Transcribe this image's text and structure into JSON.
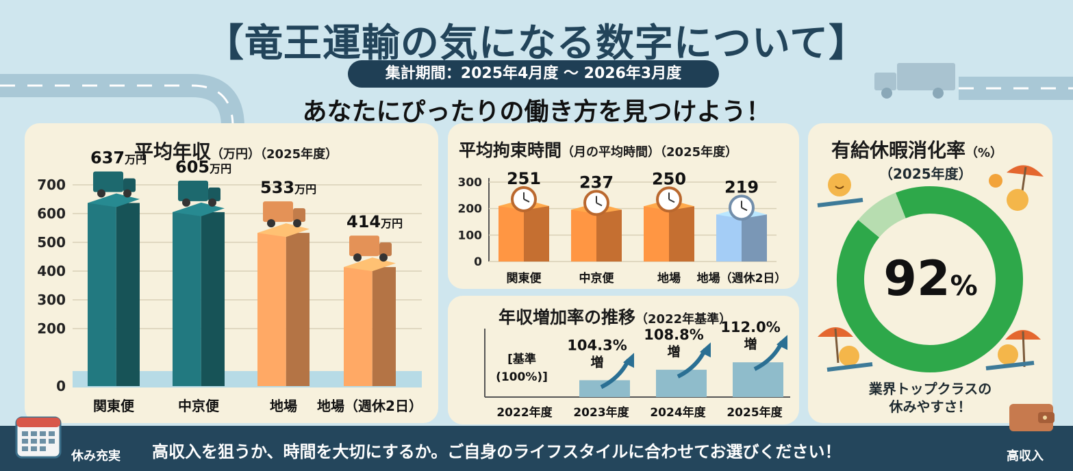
{
  "header": {
    "title": "【竜王運輸の気になる数字について】",
    "period": "集計期間：2025年4月度 〜 2026年3月度",
    "subtitle": "あなたにぴったりの働き方を見つけよう！"
  },
  "salary": {
    "title": "平均年収",
    "title_unit": "（万円）（2025年度）",
    "value_suffix": "万円",
    "chart_data": {
      "type": "bar",
      "categories": [
        "関東便",
        "中京便",
        "地場",
        "地場（週休2日）"
      ],
      "values": [
        637,
        605,
        533,
        414
      ],
      "ylim": [
        0,
        700
      ],
      "yticks": [
        0,
        200,
        300,
        400,
        500,
        600,
        700
      ],
      "colors": [
        "#1f6e74",
        "#1f6e74",
        "#f09a5c",
        "#f09a5c"
      ]
    }
  },
  "hours": {
    "title": "平均拘束時間",
    "title_unit": "（月の平均時間）（2025年度）",
    "chart_data": {
      "type": "bar",
      "categories": [
        "関東便",
        "中京便",
        "地場",
        "地場（週休2日）"
      ],
      "values": [
        251,
        237,
        250,
        219
      ],
      "ylim": [
        0,
        300
      ],
      "yticks": [
        0,
        100,
        200,
        300
      ],
      "colors": [
        "#e8823a",
        "#e8823a",
        "#e8823a",
        "#8fb2d6"
      ]
    }
  },
  "growth": {
    "title": "年収増加率の推移",
    "title_unit": "（2022年基準）",
    "chart_data": {
      "type": "bar",
      "categories": [
        "2022年度",
        "2023年度",
        "2024年度",
        "2025年度"
      ],
      "values": [
        100,
        104.3,
        108.8,
        112.0
      ],
      "labels": [
        "[基準 (100%)]",
        "104.3% 増",
        "108.8% 増",
        "112.0% 増"
      ]
    }
  },
  "leave": {
    "title": "有給休暇消化率",
    "title_unit": "（%）",
    "year": "（2025年度）",
    "chart_data": {
      "type": "pie",
      "values": [
        92,
        8
      ],
      "colors": [
        "#2ea84a",
        "#b7ddb0"
      ]
    },
    "value_text": "92",
    "value_unit": "%",
    "caption_line1": "業界トップクラスの",
    "caption_line2": "休みやすさ！"
  },
  "footer": {
    "left_label": "休み充実",
    "message": "高収入を狙うか、時間を大切にするか。ご自身のライフスタイルに合わせてお選びください！",
    "right_label": "高収入"
  }
}
